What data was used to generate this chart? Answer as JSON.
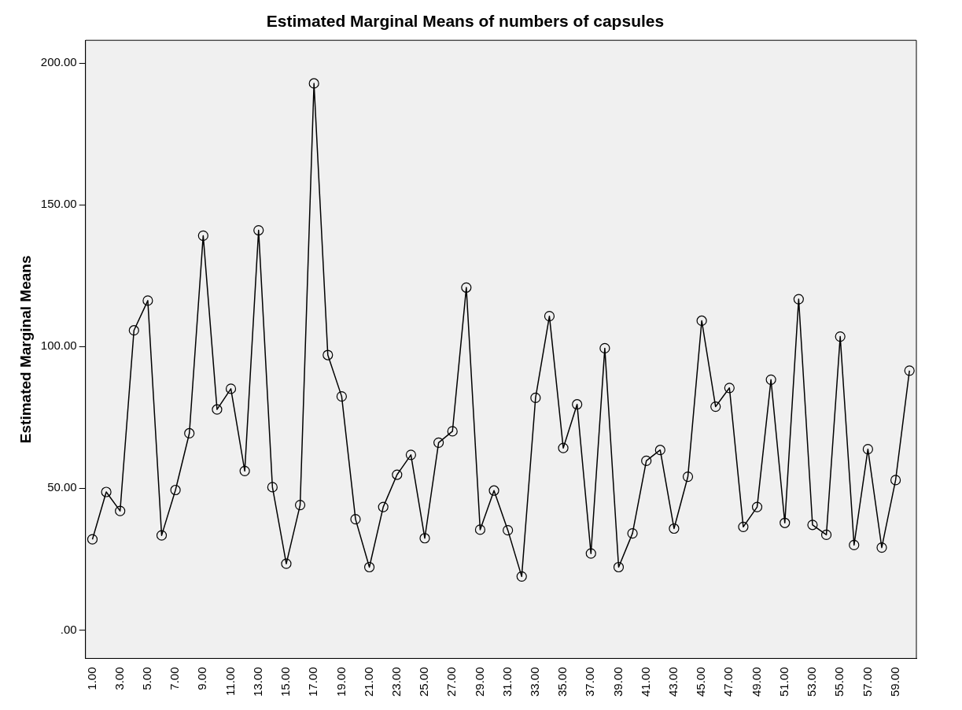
{
  "chart_data": {
    "type": "line",
    "title": "Estimated Marginal Means of numbers of capsules",
    "ylabel": "Estimated Marginal Means",
    "categories": [
      "1.00",
      null,
      "3.00",
      null,
      "5.00",
      null,
      "7.00",
      null,
      "9.00",
      null,
      "11.00",
      null,
      "13.00",
      null,
      "15.00",
      null,
      "17.00",
      null,
      "19.00",
      null,
      "21.00",
      null,
      "23.00",
      null,
      "25.00",
      null,
      "27.00",
      null,
      "29.00",
      null,
      "31.00",
      null,
      "33.00",
      null,
      "35.00",
      null,
      "37.00",
      null,
      "39.00",
      null,
      "41.00",
      null,
      "43.00",
      null,
      "45.00",
      null,
      "47.00",
      null,
      "49.00",
      null,
      "51.00",
      null,
      "53.00",
      null,
      "55.00",
      null,
      "57.00",
      null,
      "59.00",
      null
    ],
    "series": [
      {
        "color": "#000000",
        "values": [
          32.0,
          48.7,
          42.0,
          105.7,
          116.2,
          33.4,
          49.4,
          69.4,
          139.1,
          77.8,
          85.1,
          56.1,
          141.0,
          50.4,
          23.4,
          44.1,
          192.8,
          97.0,
          82.4,
          39.1,
          22.2,
          43.4,
          54.8,
          61.8,
          32.4,
          66.1,
          70.1,
          120.8,
          35.4,
          49.2,
          35.2,
          18.9,
          81.9,
          110.7,
          64.2,
          79.6,
          27.0,
          99.4,
          22.2,
          34.1,
          59.7,
          63.5,
          35.8,
          54.1,
          109.1,
          78.8,
          85.4,
          36.4,
          43.4,
          88.3,
          37.8,
          116.7,
          37.1,
          33.6,
          103.5,
          30.0,
          63.8,
          29.1,
          52.9,
          91.5
        ]
      }
    ],
    "ylim": [
      -10,
      208
    ],
    "yticks": [
      {
        "value": 0,
        "label": ".00"
      },
      {
        "value": 50,
        "label": "50.00"
      },
      {
        "value": 100,
        "label": "100.00"
      },
      {
        "value": 150,
        "label": "150.00"
      },
      {
        "value": 200,
        "label": "200.00"
      }
    ],
    "marker": "circle",
    "line_style": "solid",
    "grid": false,
    "legend": false
  }
}
